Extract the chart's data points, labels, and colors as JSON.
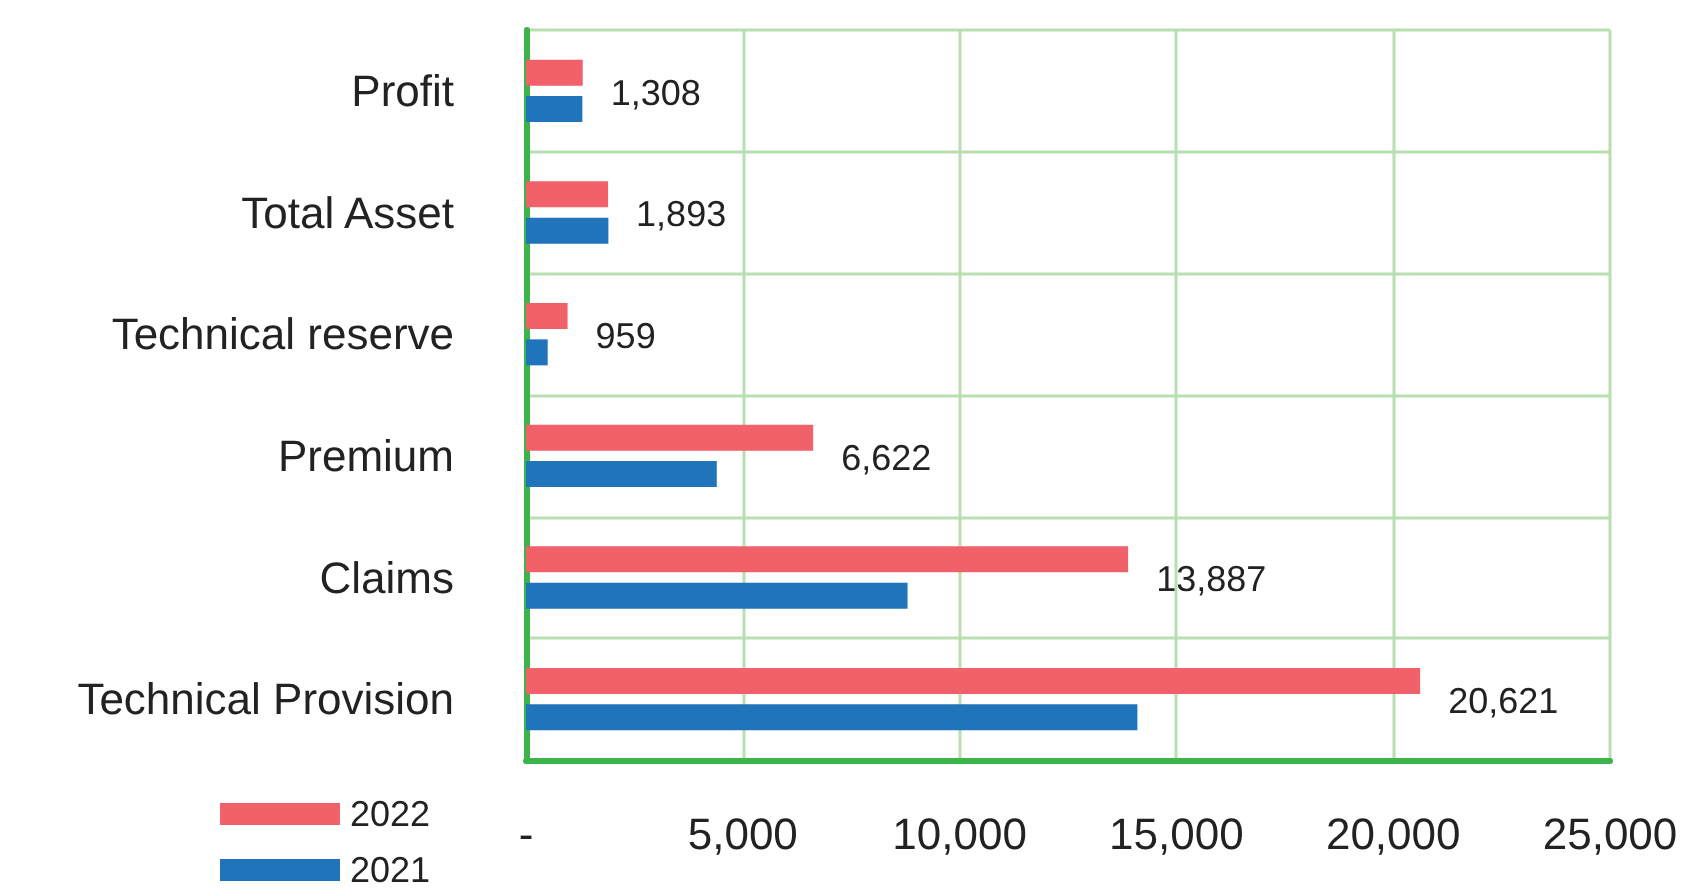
{
  "chart_data": {
    "type": "bar",
    "orientation": "horizontal",
    "categories": [
      "Profit",
      "Total Asset",
      "Technical reserve",
      "Premium",
      "Claims",
      "Technical Provision"
    ],
    "series": [
      {
        "name": "2022",
        "color": "#f0616a",
        "values": [
          1308,
          1893,
          959,
          6622,
          13887,
          20621
        ],
        "value_labels": [
          "1,308",
          "1,893",
          "959",
          "6,622",
          "13,887",
          "20,621"
        ]
      },
      {
        "name": "2021",
        "color": "#1f74ba",
        "values": [
          1300,
          1900,
          500,
          4400,
          8800,
          14100
        ]
      }
    ],
    "xlim": [
      0,
      25000
    ],
    "xticks": [
      {
        "value": 0,
        "label": "-"
      },
      {
        "value": 5000,
        "label": "5,000"
      },
      {
        "value": 10000,
        "label": "10,000"
      },
      {
        "value": 15000,
        "label": "15,000"
      },
      {
        "value": 20000,
        "label": "20,000"
      },
      {
        "value": 25000,
        "label": "25,000"
      }
    ],
    "grid": true,
    "legend": "bottom left"
  }
}
